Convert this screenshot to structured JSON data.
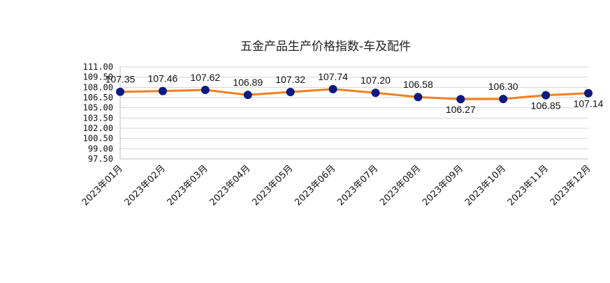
{
  "chart_data": {
    "type": "line",
    "title": "五金产品生产价格指数-车及配件",
    "categories": [
      "2023年01月",
      "2023年02月",
      "2023年03月",
      "2023年04月",
      "2023年05月",
      "2023年06月",
      "2023年07月",
      "2023年08月",
      "2023年09月",
      "2023年10月",
      "2023年11月",
      "2023年12月"
    ],
    "series": [
      {
        "values": [
          107.35,
          107.46,
          107.62,
          106.89,
          107.32,
          107.74,
          107.2,
          106.58,
          106.27,
          106.3,
          106.85,
          107.14
        ],
        "data_labels": [
          "107.35",
          "107.46",
          "107.62",
          "106.89",
          "107.32",
          "107.74",
          "107.20",
          "106.58",
          "106.27",
          "106.30",
          "106.85",
          "107.14"
        ],
        "line_color": "#f07f1f",
        "marker_color": "#0d1a80"
      }
    ],
    "y_ticks": [
      "111.00",
      "109.50",
      "108.00",
      "106.50",
      "105.00",
      "103.50",
      "102.00",
      "100.50",
      "99.00",
      "97.50"
    ],
    "ylim": [
      97.5,
      111.0
    ],
    "grid": true,
    "legend": "none",
    "xlabel": "",
    "ylabel": ""
  }
}
